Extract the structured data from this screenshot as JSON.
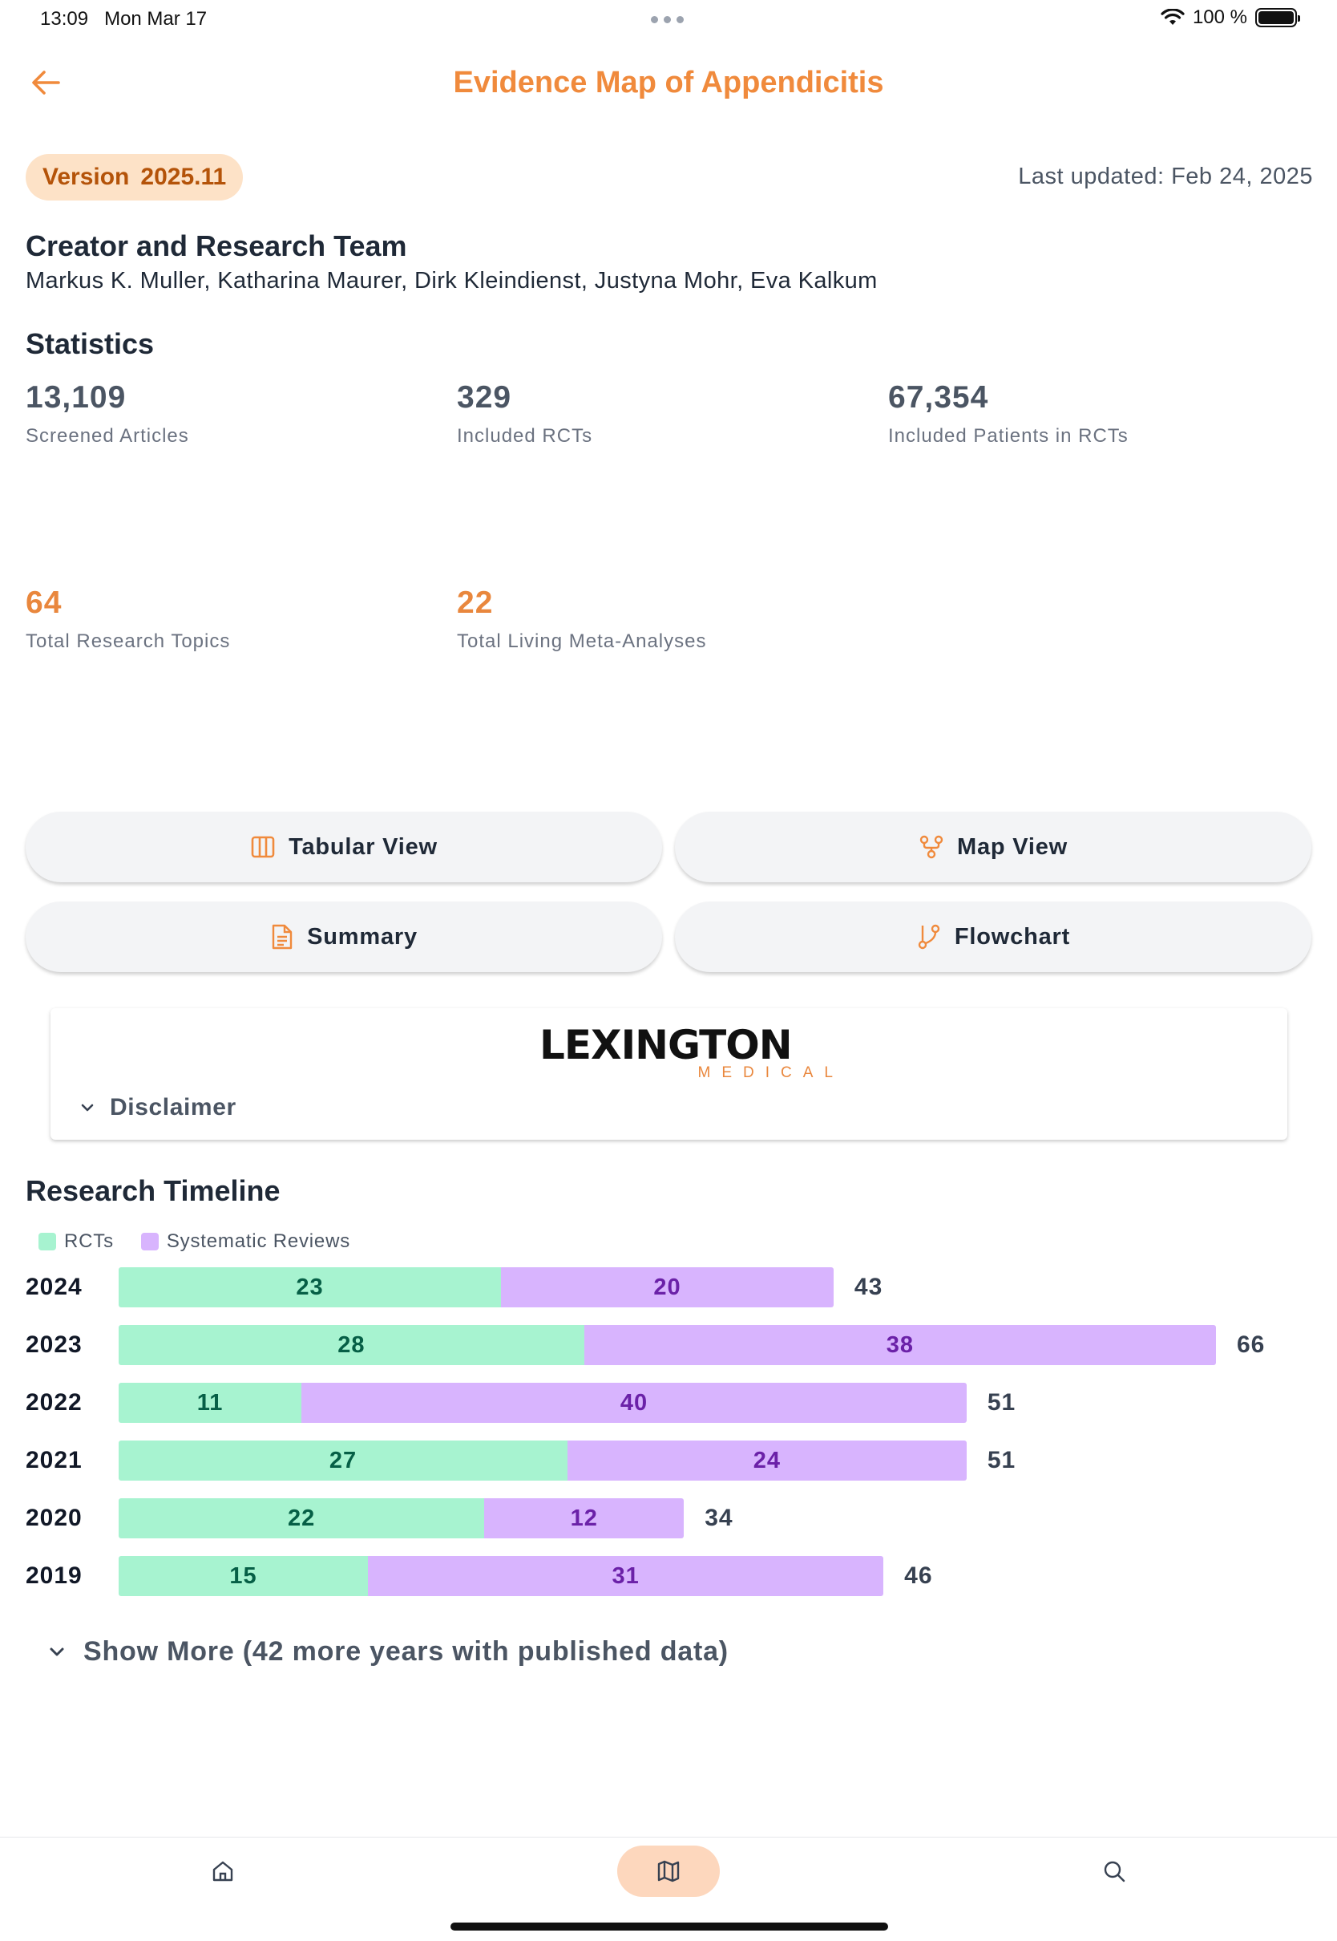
{
  "status_bar": {
    "time": "13:09",
    "date": "Mon Mar 17",
    "battery": "100 %"
  },
  "header": {
    "title": "Evidence Map of Appendicitis",
    "back_icon": "arrow-left-icon"
  },
  "version": {
    "label": "Version",
    "value": "2025.11"
  },
  "last_updated": "Last updated: Feb 24, 2025",
  "team": {
    "heading": "Creator and Research Team",
    "names": "Markus K. Muller, Katharina Maurer, Dirk Kleindienst, Justyna Mohr, Eva Kalkum"
  },
  "statistics": {
    "heading": "Statistics",
    "items": [
      {
        "value": "13,109",
        "label": "Screened Articles"
      },
      {
        "value": "329",
        "label": "Included RCTs"
      },
      {
        "value": "67,354",
        "label": "Included Patients in RCTs"
      },
      {
        "value": "64",
        "label": "Total Research Topics"
      },
      {
        "value": "22",
        "label": "Total Living Meta-Analyses"
      }
    ]
  },
  "views": {
    "tabular": "Tabular View",
    "map": "Map View",
    "summary": "Summary",
    "flowchart": "Flowchart"
  },
  "sponsor": {
    "logo_main": "LEXINGTON",
    "logo_sub": "MEDICAL",
    "disclaimer": "Disclaimer"
  },
  "timeline": {
    "heading": "Research Timeline",
    "legend": [
      "RCTs",
      "Systematic Reviews"
    ],
    "colors": {
      "rct": "#a7f3d0",
      "sr": "#d8b4fe"
    },
    "show_more": "Show More (42 more years with published data)"
  },
  "chart_data": {
    "type": "bar",
    "orientation": "horizontal",
    "stacked": true,
    "categories": [
      "2024",
      "2023",
      "2022",
      "2021",
      "2020",
      "2019"
    ],
    "series": [
      {
        "name": "RCTs",
        "values": [
          23,
          28,
          11,
          27,
          22,
          15
        ]
      },
      {
        "name": "Systematic Reviews",
        "values": [
          20,
          38,
          40,
          24,
          12,
          31
        ]
      }
    ],
    "totals": [
      43,
      66,
      51,
      51,
      34,
      46
    ],
    "title": "Research Timeline",
    "legend": "top-left"
  },
  "bottom_nav": {
    "items": [
      "home-icon",
      "map-icon",
      "search-icon"
    ],
    "active": "map-icon"
  }
}
